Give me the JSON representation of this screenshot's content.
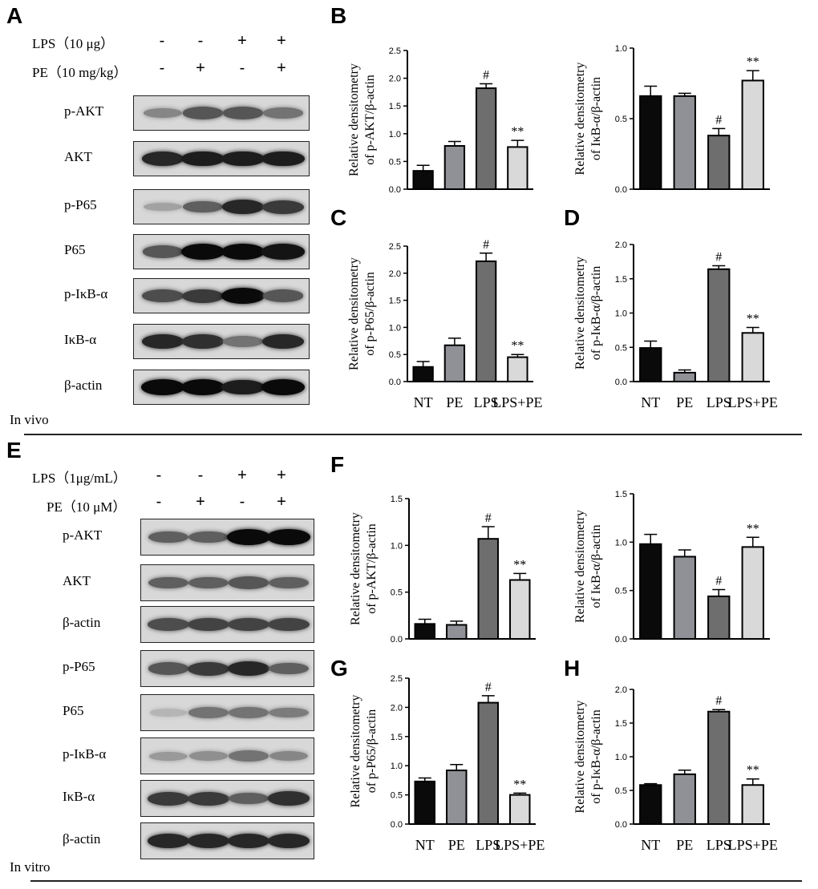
{
  "panels": {
    "A": "A",
    "B": "B",
    "C": "C",
    "D": "D",
    "E": "E",
    "F": "F",
    "G": "G",
    "H": "H"
  },
  "invivo": {
    "caption": "In vivo",
    "treat1_label": "LPS（10 μg）",
    "treat2_label": "PE（10 mg/kg）",
    "treat1_signs": [
      "-",
      "-",
      "+",
      "+"
    ],
    "treat2_signs": [
      "-",
      "+",
      "-",
      "+"
    ],
    "blots": [
      {
        "label": "p-AKT",
        "bands": [
          0.35,
          0.6,
          0.6,
          0.45
        ]
      },
      {
        "label": "AKT",
        "bands": [
          0.85,
          0.9,
          0.9,
          0.9
        ]
      },
      {
        "label": "p-P65",
        "bands": [
          0.2,
          0.55,
          0.85,
          0.75
        ]
      },
      {
        "label": "P65",
        "bands": [
          0.6,
          1.0,
          1.0,
          0.95
        ]
      },
      {
        "label": "p-IκB-α",
        "bands": [
          0.65,
          0.75,
          1.0,
          0.6
        ]
      },
      {
        "label": "IκB-α",
        "bands": [
          0.85,
          0.8,
          0.45,
          0.85
        ]
      },
      {
        "label": "β-actin",
        "bands": [
          1.0,
          1.0,
          0.9,
          1.0
        ]
      }
    ]
  },
  "invitro": {
    "caption": "In vitro",
    "treat1_label": "LPS（1μg/mL）",
    "treat2_label": "PE（10 μM）",
    "treat1_signs": [
      "-",
      "-",
      "+",
      "+"
    ],
    "treat2_signs": [
      "-",
      "+",
      "-",
      "+"
    ],
    "blots": [
      {
        "label": "p-AKT",
        "bands": [
          0.55,
          0.55,
          1.0,
          1.0
        ]
      },
      {
        "label": "AKT",
        "bands": [
          0.55,
          0.55,
          0.6,
          0.55
        ]
      },
      {
        "label": "β-actin",
        "bands": [
          0.65,
          0.7,
          0.7,
          0.7
        ]
      },
      {
        "label": "p-P65",
        "bands": [
          0.6,
          0.75,
          0.85,
          0.55
        ]
      },
      {
        "label": "P65",
        "bands": [
          0.1,
          0.45,
          0.45,
          0.4
        ]
      },
      {
        "label": "p-IκB-α",
        "bands": [
          0.25,
          0.3,
          0.45,
          0.35
        ]
      },
      {
        "label": "IκB-α",
        "bands": [
          0.75,
          0.75,
          0.55,
          0.8
        ]
      },
      {
        "label": "β-actin",
        "bands": [
          0.85,
          0.85,
          0.85,
          0.85
        ]
      }
    ]
  },
  "chart_data": [
    {
      "id": "B",
      "type": "bar",
      "categories": [
        "NT",
        "PE",
        "LPS",
        "LPS+PE"
      ],
      "values": [
        0.33,
        0.78,
        1.82,
        0.76
      ],
      "errors": [
        0.1,
        0.08,
        0.08,
        0.12
      ],
      "ylim": [
        0,
        2.5
      ],
      "yticks": [
        "0.0",
        "0.5",
        "1.0",
        "1.5",
        "2.0",
        "2.5"
      ],
      "ylabel": [
        "Relative densitometry",
        "of p-AKT/β-actin"
      ],
      "annotations": [
        "",
        "",
        "#",
        "**"
      ],
      "show_x_labels": false
    },
    {
      "id": "B2",
      "type": "bar",
      "categories": [
        "NT",
        "PE",
        "LPS",
        "LPS+PE"
      ],
      "values": [
        0.66,
        0.66,
        0.38,
        0.77
      ],
      "errors": [
        0.07,
        0.02,
        0.05,
        0.07
      ],
      "ylim": [
        0,
        1.0
      ],
      "yticks": [
        "0.0",
        "0.5",
        "1.0"
      ],
      "ylabel": [
        "Relative densitometry",
        "of IκB-α/β-actin"
      ],
      "annotations": [
        "",
        "",
        "#",
        "**"
      ],
      "show_x_labels": false
    },
    {
      "id": "C",
      "type": "bar",
      "categories": [
        "NT",
        "PE",
        "LPS",
        "LPS+PE"
      ],
      "values": [
        0.27,
        0.67,
        2.22,
        0.45
      ],
      "errors": [
        0.1,
        0.13,
        0.15,
        0.05
      ],
      "ylim": [
        0,
        2.5
      ],
      "yticks": [
        "0.0",
        "0.5",
        "1.0",
        "1.5",
        "2.0",
        "2.5"
      ],
      "ylabel": [
        "Relative densitometry",
        "of p-P65/β-actin"
      ],
      "annotations": [
        "",
        "",
        "#",
        "**"
      ],
      "show_x_labels": true
    },
    {
      "id": "D",
      "type": "bar",
      "categories": [
        "NT",
        "PE",
        "LPS",
        "LPS+PE"
      ],
      "values": [
        0.49,
        0.13,
        1.64,
        0.71
      ],
      "errors": [
        0.1,
        0.04,
        0.05,
        0.08
      ],
      "ylim": [
        0,
        2.0
      ],
      "yticks": [
        "0.0",
        "0.5",
        "1.0",
        "1.5",
        "2.0"
      ],
      "ylabel": [
        "Relative densitometry",
        "of p-IκB-α/β-actin"
      ],
      "annotations": [
        "",
        "",
        "#",
        "**"
      ],
      "show_x_labels": true
    },
    {
      "id": "F",
      "type": "bar",
      "categories": [
        "NT",
        "PE",
        "LPS",
        "LPS+PE"
      ],
      "values": [
        0.16,
        0.15,
        1.07,
        0.63
      ],
      "errors": [
        0.05,
        0.04,
        0.13,
        0.07
      ],
      "ylim": [
        0,
        1.5
      ],
      "yticks": [
        "0.0",
        "0.5",
        "1.0",
        "1.5"
      ],
      "ylabel": [
        "Relative densitometry",
        "of p-AKT/β-actin"
      ],
      "annotations": [
        "",
        "",
        "#",
        "**"
      ],
      "show_x_labels": false
    },
    {
      "id": "F2",
      "type": "bar",
      "categories": [
        "NT",
        "PE",
        "LPS",
        "LPS+PE"
      ],
      "values": [
        0.98,
        0.85,
        0.44,
        0.95
      ],
      "errors": [
        0.1,
        0.07,
        0.07,
        0.1
      ],
      "ylim": [
        0,
        1.5
      ],
      "yticks": [
        "0.0",
        "0.5",
        "1.0",
        "1.5"
      ],
      "ylabel": [
        "Relative densitometry",
        "of  IκB-α/β-actin"
      ],
      "annotations": [
        "",
        "",
        "#",
        "**"
      ],
      "show_x_labels": false
    },
    {
      "id": "G",
      "type": "bar",
      "categories": [
        "NT",
        "PE",
        "LPS",
        "LPS+PE"
      ],
      "values": [
        0.73,
        0.92,
        2.08,
        0.5
      ],
      "errors": [
        0.06,
        0.1,
        0.12,
        0.03
      ],
      "ylim": [
        0,
        2.5
      ],
      "yticks": [
        "0.0",
        "0.5",
        "1.0",
        "1.5",
        "2.0",
        "2.5"
      ],
      "ylabel": [
        "Relative densitometry",
        "of p-P65/β-actin"
      ],
      "annotations": [
        "",
        "",
        "#",
        "**"
      ],
      "show_x_labels": true
    },
    {
      "id": "H",
      "type": "bar",
      "categories": [
        "NT",
        "PE",
        "LPS",
        "LPS+PE"
      ],
      "values": [
        0.58,
        0.74,
        1.67,
        0.58
      ],
      "errors": [
        0.02,
        0.06,
        0.03,
        0.09
      ],
      "ylim": [
        0,
        2.0
      ],
      "yticks": [
        "0.0",
        "0.5",
        "1.0",
        "1.5",
        "2.0"
      ],
      "ylabel": [
        "Relative densitometry",
        "of p-IκB-α/β-actin"
      ],
      "annotations": [
        "",
        "",
        "#",
        "**"
      ],
      "show_x_labels": true
    }
  ],
  "bar_colors": [
    "#0a0a0a",
    "#8f9196",
    "#6e6e6e",
    "#d9d9d9"
  ]
}
